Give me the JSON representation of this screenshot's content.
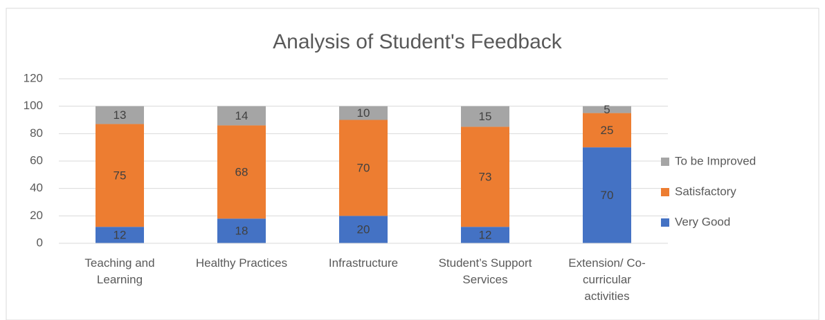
{
  "chart_data": {
    "type": "stacked_bar",
    "title": "Analysis of Student's Feedback",
    "categories": [
      "Teaching and Learning",
      "Healthy Practices",
      "Infrastructure",
      "Student’s Support Services",
      "Extension/ Co-curricular activities"
    ],
    "series": [
      {
        "name": "Very Good",
        "color": "#4472c4",
        "values": [
          12,
          18,
          20,
          12,
          70
        ]
      },
      {
        "name": "Satisfactory",
        "color": "#ed7d31",
        "values": [
          75,
          68,
          70,
          73,
          25
        ]
      },
      {
        "name": "To be Improved",
        "color": "#a5a5a5",
        "values": [
          13,
          14,
          10,
          15,
          5
        ]
      }
    ],
    "ylim": [
      0,
      120
    ],
    "yticks": [
      0,
      20,
      40,
      60,
      80,
      100,
      120
    ],
    "grid": true,
    "legend": "right"
  }
}
